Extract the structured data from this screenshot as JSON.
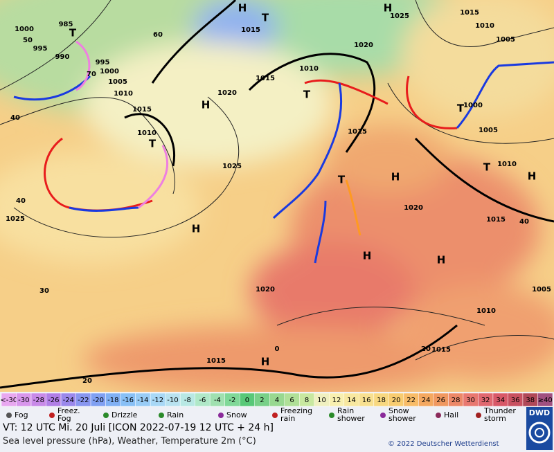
{
  "map": {
    "pressure_labels": [
      "985",
      "995",
      "990",
      "1000",
      "995",
      "1000",
      "1005",
      "1010",
      "1015",
      "1010",
      "1020",
      "1025",
      "1025",
      "1020",
      "1015",
      "1010",
      "1015",
      "1015",
      "1020",
      "1015",
      "1000",
      "1005",
      "1010",
      "1005",
      "1010",
      "1015",
      "1025",
      "1020",
      "1015",
      "1005",
      "1010",
      "1015",
      "20",
      "20",
      "30",
      "40",
      "40",
      "40",
      "50",
      "60",
      "70",
      "0"
    ],
    "systems": [
      "H",
      "H",
      "H",
      "H",
      "H",
      "H",
      "H",
      "H",
      "H",
      "T",
      "T",
      "T",
      "T",
      "T",
      "T",
      "T"
    ]
  },
  "scale": [
    {
      "label": "<-30",
      "color": "#e8a8f0"
    },
    {
      "label": "-30",
      "color": "#d896ec"
    },
    {
      "label": "-28",
      "color": "#c88ae8"
    },
    {
      "label": "-26",
      "color": "#b07ee6"
    },
    {
      "label": "-24",
      "color": "#9a88ec"
    },
    {
      "label": "-22",
      "color": "#8896f0"
    },
    {
      "label": "-20",
      "color": "#80a0f2"
    },
    {
      "label": "-18",
      "color": "#80b0f4"
    },
    {
      "label": "-16",
      "color": "#88c0f6"
    },
    {
      "label": "-14",
      "color": "#98ccf6"
    },
    {
      "label": "-12",
      "color": "#a8d8f6"
    },
    {
      "label": "-10",
      "color": "#b8e2f0"
    },
    {
      "label": "-8",
      "color": "#b8e8e4"
    },
    {
      "label": "-6",
      "color": "#b0e8c8"
    },
    {
      "label": "-4",
      "color": "#a0e0b0"
    },
    {
      "label": "-2",
      "color": "#80d898"
    },
    {
      "label": "0",
      "color": "#58c878"
    },
    {
      "label": "2",
      "color": "#78d088"
    },
    {
      "label": "4",
      "color": "#98d890"
    },
    {
      "label": "6",
      "color": "#b0e098"
    },
    {
      "label": "8",
      "color": "#c8e8a0"
    },
    {
      "label": "10",
      "color": "#f0f0c0"
    },
    {
      "label": "12",
      "color": "#f8f0b0"
    },
    {
      "label": "14",
      "color": "#f8e8a0"
    },
    {
      "label": "16",
      "color": "#f8e090"
    },
    {
      "label": "18",
      "color": "#f8d880"
    },
    {
      "label": "20",
      "color": "#f8cc70"
    },
    {
      "label": "22",
      "color": "#f8bc68"
    },
    {
      "label": "24",
      "color": "#f4a860"
    },
    {
      "label": "26",
      "color": "#f09860"
    },
    {
      "label": "28",
      "color": "#ec8868"
    },
    {
      "label": "30",
      "color": "#e87870"
    },
    {
      "label": "32",
      "color": "#e06870"
    },
    {
      "label": "34",
      "color": "#d85868"
    },
    {
      "label": "36",
      "color": "#c85060"
    },
    {
      "label": "38",
      "color": "#b04858"
    },
    {
      "label": "≥40",
      "color": "#a05080"
    }
  ],
  "weather_legend": [
    {
      "lines": [
        "Fog"
      ]
    },
    {
      "lines": [
        "Freez.",
        "Fog"
      ]
    },
    {
      "lines": [
        "Drizzle"
      ]
    },
    {
      "lines": [
        "Rain"
      ]
    },
    {
      "lines": [
        "Snow"
      ]
    },
    {
      "lines": [
        "Freezing",
        "rain"
      ]
    },
    {
      "lines": [
        "Rain",
        "shower"
      ]
    },
    {
      "lines": [
        "Snow",
        "shower"
      ]
    },
    {
      "lines": [
        "Hail"
      ]
    },
    {
      "lines": [
        "Thunder",
        "storm"
      ]
    }
  ],
  "info": {
    "valid_time": "VT: 12 UTC Mi.  20 Juli [ICON 2022-07-19  12 UTC + 24 h]",
    "description": "Sea level pressure (hPa), Weather, Temperature 2m (°C)",
    "copyright": "© 2022 Deutscher Wetterdienst",
    "logo": "DWD"
  }
}
